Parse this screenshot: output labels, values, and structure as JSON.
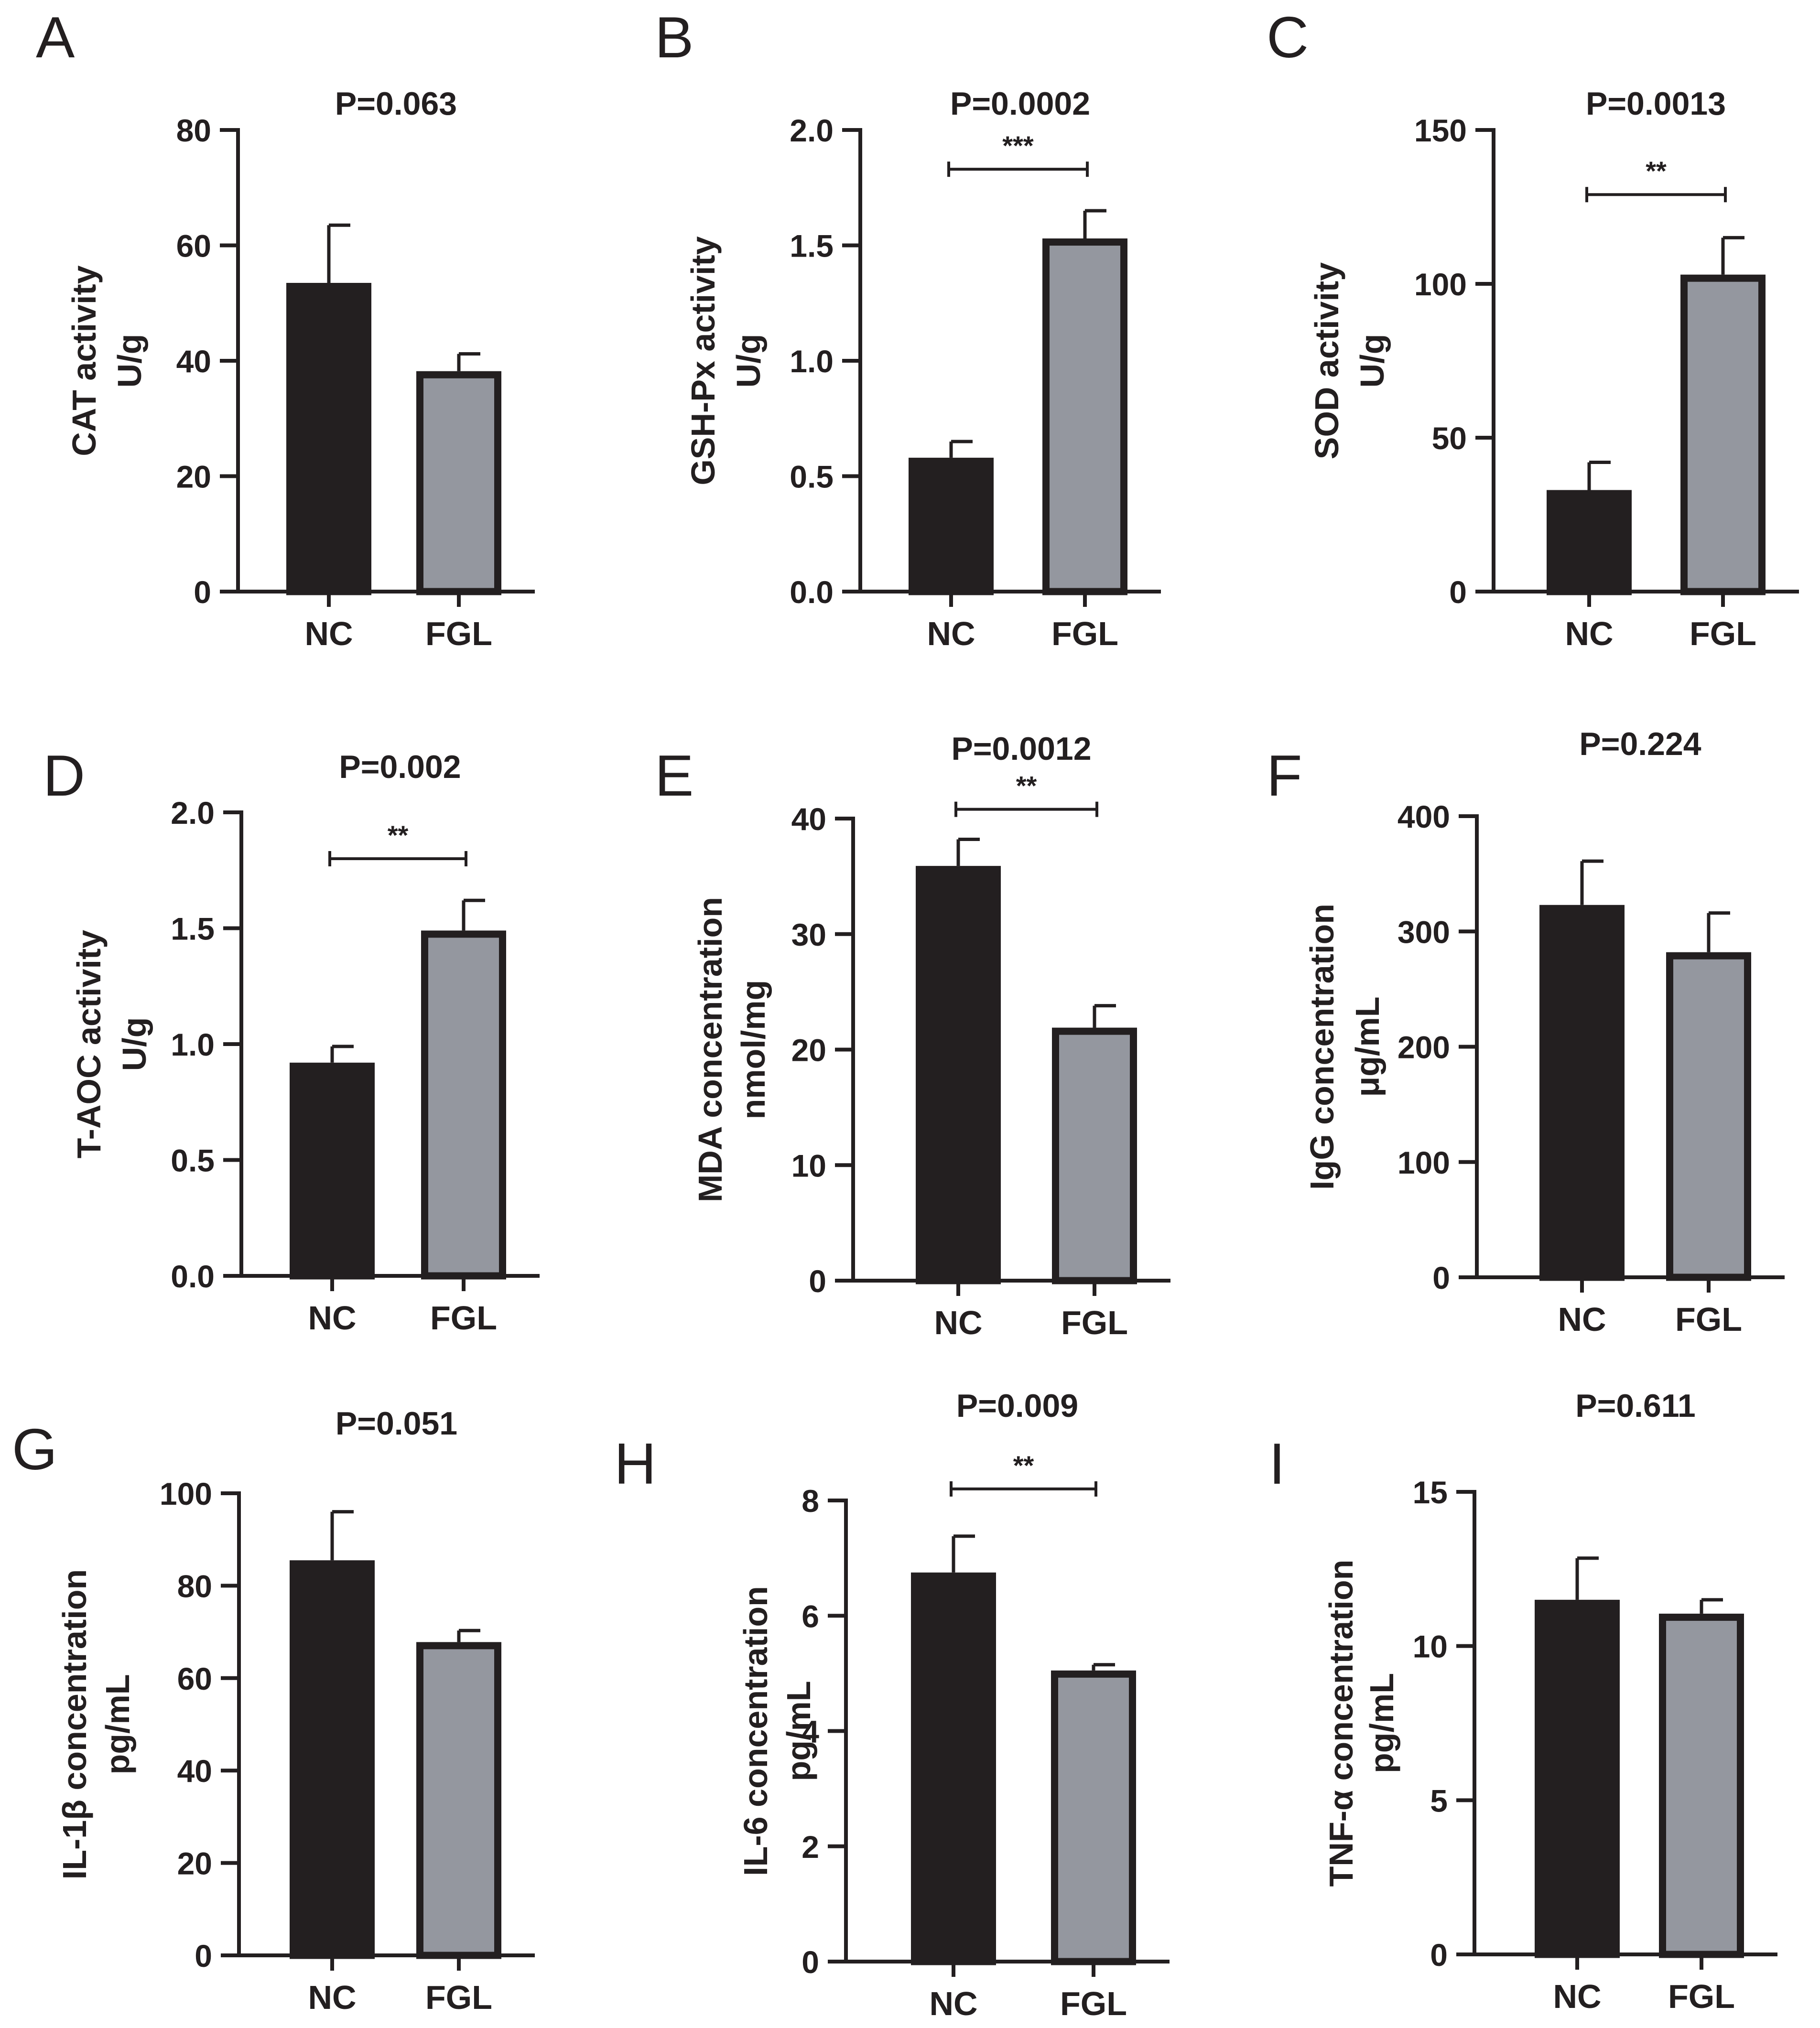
{
  "figure": {
    "colors": {
      "ink": "#231f20",
      "nc_fill": "#231f20",
      "fgl_fill": "#94979f",
      "background": "#ffffff"
    }
  },
  "chart_data": [
    {
      "panel": "A",
      "type": "bar",
      "title": "P=0.063",
      "categories": [
        "NC",
        "FGL"
      ],
      "values": [
        53.5,
        38.2
      ],
      "errors": [
        10.0,
        3.0
      ],
      "ylabel": "CAT activity",
      "yunit": "U/g",
      "ylim": [
        0,
        80
      ],
      "yticks": [
        0,
        20,
        40,
        60,
        80
      ],
      "tick_labels": [
        "0",
        "20",
        "40",
        "60",
        "80"
      ],
      "significance": ""
    },
    {
      "panel": "B",
      "type": "bar",
      "title": "P=0.0002",
      "categories": [
        "NC",
        "FGL"
      ],
      "values": [
        0.58,
        1.53
      ],
      "errors": [
        0.07,
        0.12
      ],
      "ylabel": "GSH-Px activity",
      "yunit": "U/g",
      "ylim": [
        0,
        2.0
      ],
      "yticks": [
        0,
        0.5,
        1.0,
        1.5,
        2.0
      ],
      "tick_labels": [
        "0.0",
        "0.5",
        "1.0",
        "1.5",
        "2.0"
      ],
      "significance": "***",
      "sig_y": 1.83
    },
    {
      "panel": "C",
      "type": "bar",
      "title": "P=0.0013",
      "categories": [
        "NC",
        "FGL"
      ],
      "values": [
        33.0,
        103.0
      ],
      "errors": [
        9.0,
        12.0
      ],
      "ylabel": "SOD activity",
      "yunit": "U/g",
      "ylim": [
        0,
        150
      ],
      "yticks": [
        0,
        50,
        100,
        150
      ],
      "tick_labels": [
        "0",
        "50",
        "100",
        "150"
      ],
      "significance": "**",
      "sig_y": 129
    },
    {
      "panel": "D",
      "type": "bar",
      "title": "P=0.002",
      "categories": [
        "NC",
        "FGL"
      ],
      "values": [
        0.92,
        1.49
      ],
      "errors": [
        0.07,
        0.13
      ],
      "ylabel": "T-AOC activity",
      "yunit": "U/g",
      "ylim": [
        0,
        2.0
      ],
      "yticks": [
        0,
        0.5,
        1.0,
        1.5,
        2.0
      ],
      "tick_labels": [
        "0.0",
        "0.5",
        "1.0",
        "1.5",
        "2.0"
      ],
      "significance": "**",
      "sig_y": 1.8
    },
    {
      "panel": "E",
      "type": "bar",
      "title": "P=0.0012",
      "categories": [
        "NC",
        "FGL"
      ],
      "values": [
        35.9,
        21.9
      ],
      "errors": [
        2.3,
        1.9
      ],
      "ylabel": "MDA concentration",
      "yunit": "nmol/mg",
      "ylim": [
        0,
        40
      ],
      "yticks": [
        0,
        10,
        20,
        30,
        40
      ],
      "tick_labels": [
        "0",
        "10",
        "20",
        "30",
        "40"
      ],
      "significance": "**",
      "sig_y": 40.8
    },
    {
      "panel": "F",
      "type": "bar",
      "title": "P=0.224",
      "categories": [
        "NC",
        "FGL"
      ],
      "values": [
        323.0,
        282.0
      ],
      "errors": [
        38.0,
        34.0
      ],
      "ylabel": "IgG concentration",
      "yunit": "μg/mL",
      "ylim": [
        0,
        400
      ],
      "yticks": [
        0,
        100,
        200,
        300,
        400
      ],
      "tick_labels": [
        "0",
        "100",
        "200",
        "300",
        "400"
      ],
      "significance": ""
    },
    {
      "panel": "G",
      "type": "bar",
      "title": "P=0.051",
      "categories": [
        "NC",
        "FGL"
      ],
      "values": [
        85.5,
        67.8
      ],
      "errors": [
        10.5,
        2.5
      ],
      "ylabel": "IL-1β concentration",
      "yunit": "pg/mL",
      "ylim": [
        0,
        100
      ],
      "yticks": [
        0,
        20,
        40,
        60,
        80,
        100
      ],
      "tick_labels": [
        "0",
        "20",
        "40",
        "60",
        "80",
        "100"
      ],
      "significance": ""
    },
    {
      "panel": "H",
      "type": "bar",
      "title": "P=0.009",
      "categories": [
        "NC",
        "FGL"
      ],
      "values": [
        6.75,
        5.05
      ],
      "errors": [
        0.63,
        0.1
      ],
      "ylabel": "IL-6 concentration",
      "yunit": "pg/mL",
      "ylim": [
        0,
        8
      ],
      "yticks": [
        0,
        2,
        4,
        6,
        8
      ],
      "tick_labels": [
        "0",
        "2",
        "4",
        "6",
        "8"
      ],
      "significance": "**",
      "sig_y": 8.2
    },
    {
      "panel": "I",
      "type": "bar",
      "title": "P=0.611",
      "categories": [
        "NC",
        "FGL"
      ],
      "values": [
        11.5,
        11.05
      ],
      "errors": [
        1.35,
        0.45
      ],
      "ylabel": "TNF-α concentration",
      "yunit": "pg/mL",
      "ylim": [
        0,
        15
      ],
      "yticks": [
        0,
        5,
        10,
        15
      ],
      "tick_labels": [
        "0",
        "5",
        "10",
        "15"
      ],
      "significance": ""
    }
  ]
}
